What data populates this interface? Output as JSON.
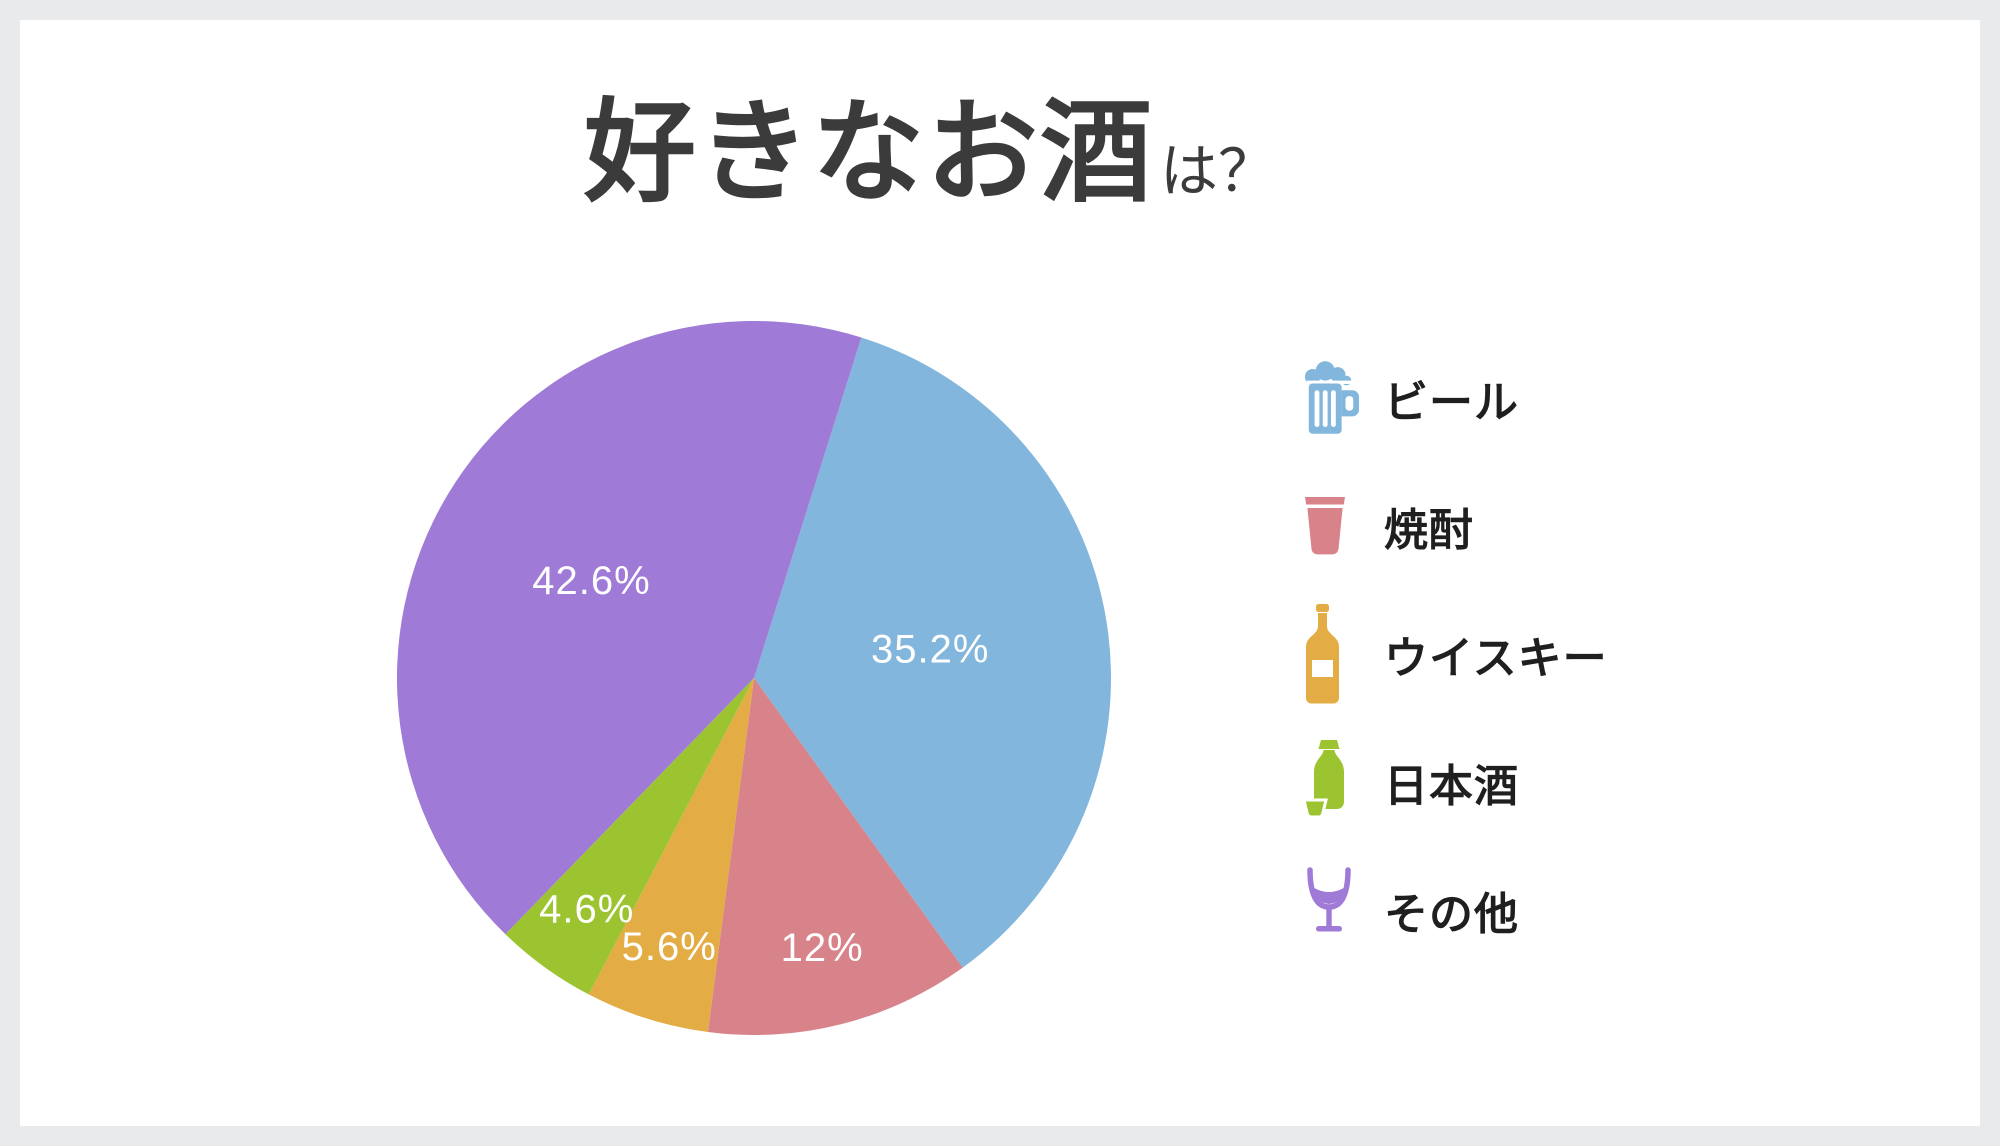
{
  "frame": {
    "background_color": "#E9EAEC",
    "card_color": "#FFFFFF"
  },
  "title": {
    "main": "好きなお酒",
    "suffix": "は？",
    "color": "#3B3B3B"
  },
  "chart_data": {
    "type": "pie",
    "title": "好きなお酒は？",
    "categories": [
      "ビール",
      "焼酎",
      "ウイスキー",
      "日本酒",
      "その他"
    ],
    "names": [
      "beer",
      "shochu",
      "whiskey",
      "sake",
      "other"
    ],
    "values": [
      35.2,
      12,
      5.6,
      4.6,
      42.6
    ],
    "value_labels": [
      "35.2%",
      "12%",
      "5.6%",
      "4.6%",
      "42.6%"
    ],
    "colors": [
      "#82B6DC",
      "#D8838A",
      "#E4AC44",
      "#9CC431",
      "#9F7AD6"
    ],
    "start_angle_deg": 17.5,
    "direction": "clockwise",
    "label_color": "#FFFFFF",
    "label_radius_factors": [
      0.5,
      0.78,
      0.79,
      0.8,
      0.53
    ],
    "legend_position": "right",
    "grid": false
  },
  "legend": {
    "items": [
      {
        "label": "ビール",
        "icon": "beer-mug-icon",
        "color": "#82B6DC"
      },
      {
        "label": "焼酎",
        "icon": "shochu-glass-icon",
        "color": "#D8838A"
      },
      {
        "label": "ウイスキー",
        "icon": "whiskey-bottle-icon",
        "color": "#E4AC44"
      },
      {
        "label": "日本酒",
        "icon": "sake-bottle-icon",
        "color": "#9CC431"
      },
      {
        "label": "その他",
        "icon": "wine-glass-icon",
        "color": "#9F7AD6"
      }
    ]
  }
}
